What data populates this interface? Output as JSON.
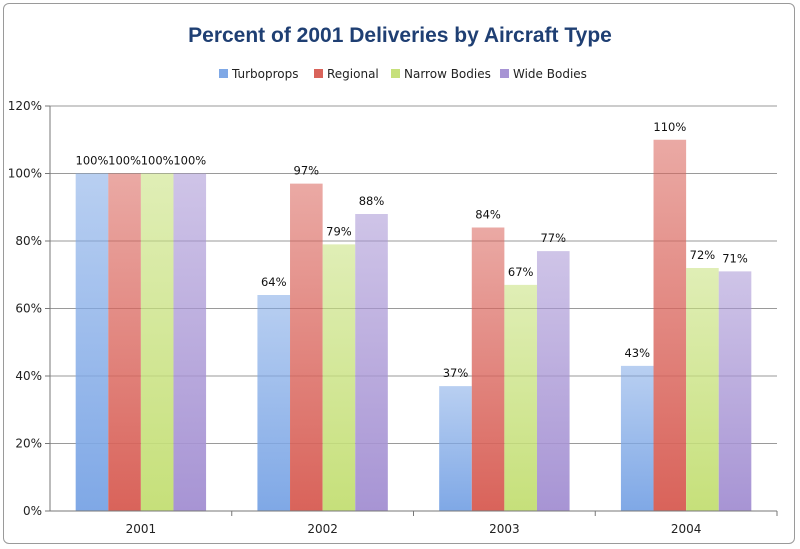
{
  "chart_data": {
    "type": "bar",
    "title": "Percent of 2001 Deliveries by Aircraft Type",
    "xlabel": "",
    "ylabel": "",
    "categories": [
      "2001",
      "2002",
      "2003",
      "2004"
    ],
    "ylim": [
      0,
      120
    ],
    "yticks": [
      0,
      20,
      40,
      60,
      80,
      100,
      120
    ],
    "ytick_labels": [
      "0%",
      "20%",
      "40%",
      "60%",
      "80%",
      "100%",
      "120%"
    ],
    "grid": true,
    "legend_position": "top",
    "series": [
      {
        "name": "Turboprops",
        "color": "#7fa8e6",
        "values": [
          100,
          64,
          37,
          43
        ],
        "labels": [
          "100%",
          "64%",
          "37%",
          "43%"
        ]
      },
      {
        "name": "Regional",
        "color": "#d9635a",
        "values": [
          100,
          97,
          84,
          110
        ],
        "labels": [
          "100%",
          "97%",
          "84%",
          "110%"
        ]
      },
      {
        "name": "Narrow Bodies",
        "color": "#c6e07a",
        "values": [
          100,
          79,
          67,
          72
        ],
        "labels": [
          "100%",
          "79%",
          "67%",
          "72%"
        ]
      },
      {
        "name": "Wide Bodies",
        "color": "#a794d4",
        "values": [
          100,
          88,
          77,
          71
        ],
        "labels": [
          "100%",
          "88%",
          "77%",
          "71%"
        ]
      }
    ]
  }
}
